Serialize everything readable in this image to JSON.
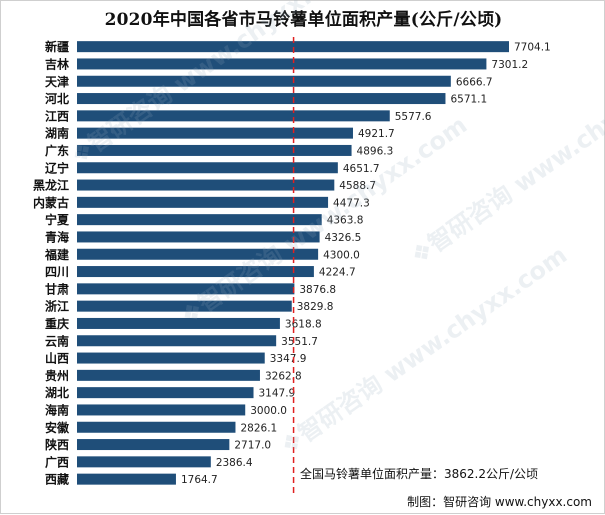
{
  "chart_data": {
    "type": "bar",
    "orientation": "horizontal",
    "title": "2020年中国各省市马铃薯单位面积产量(公斤/公顷)",
    "categories": [
      "新疆",
      "吉林",
      "天津",
      "河北",
      "江西",
      "湖南",
      "广东",
      "辽宁",
      "黑龙江",
      "内蒙古",
      "宁夏",
      "青海",
      "福建",
      "四川",
      "甘肃",
      "浙江",
      "重庆",
      "云南",
      "山西",
      "贵州",
      "湖北",
      "海南",
      "安徽",
      "陕西",
      "广西",
      "西藏"
    ],
    "values": [
      7704.1,
      7301.2,
      6666.7,
      6571.1,
      5577.6,
      4921.7,
      4896.3,
      4651.7,
      4588.7,
      4477.3,
      4363.8,
      4326.5,
      4300.0,
      4224.7,
      3876.8,
      3829.8,
      3618.8,
      3551.7,
      3347.9,
      3262.8,
      3147.9,
      3000.0,
      2826.1,
      2717.0,
      2386.4,
      1764.7
    ],
    "value_labels": [
      "7704.1",
      "7301.2",
      "6666.7",
      "6571.1",
      "5577.6",
      "4921.7",
      "4896.3",
      "4651.7",
      "4588.7",
      "4477.3",
      "4363.8",
      "4326.5",
      "4300.0",
      "4224.7",
      "3876.8",
      "3829.8",
      "3618.8",
      "3551.7",
      "3347.9",
      "3262.8",
      "3147.9",
      "3000.0",
      "2826.1",
      "2717.0",
      "2386.4",
      "1764.7"
    ],
    "xlim": [
      0,
      8000
    ],
    "reference_line": {
      "value": 3862.2,
      "label": "全国马铃薯单位面积产量：3862.2公斤/公顷",
      "style": "dashed",
      "color": "#e02020"
    },
    "bar_color": "#1f4e79",
    "grid": false,
    "legend": "none"
  },
  "source": "制图：智研咨询 www.chyxx.com",
  "watermark": "智研咨询 www.chyxx.com"
}
